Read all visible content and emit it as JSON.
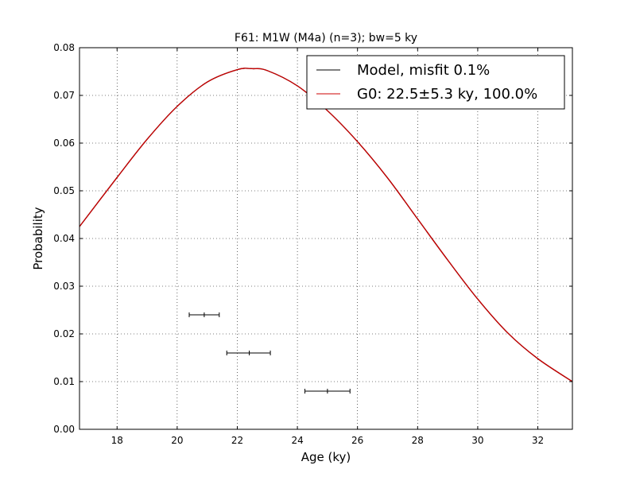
{
  "chart_data": {
    "type": "line",
    "title": "F61: M1W (M4a) (n=3); bw=5 ky",
    "xlabel": "Age (ky)",
    "ylabel": "Probability",
    "xlim": [
      16.75,
      33.15
    ],
    "ylim": [
      0,
      0.08
    ],
    "xticks": [
      18,
      20,
      22,
      24,
      26,
      28,
      30,
      32
    ],
    "yticks": [
      0.0,
      0.01,
      0.02,
      0.03,
      0.04,
      0.05,
      0.06,
      0.07,
      0.08
    ],
    "ytick_labels": [
      "0.00",
      "0.01",
      "0.02",
      "0.03",
      "0.04",
      "0.05",
      "0.06",
      "0.07",
      "0.08"
    ],
    "grid": true,
    "legend_position": "top-right",
    "series": [
      {
        "name": "Model, misfit 0.1%",
        "color": "#000000",
        "kind": "line",
        "x": [
          16.75,
          18,
          19,
          20,
          21,
          22,
          22.5,
          23,
          24,
          25,
          26,
          27,
          28,
          29,
          30,
          31,
          32,
          33.15
        ],
        "y": [
          0.0425,
          0.0528,
          0.0608,
          0.0677,
          0.0728,
          0.0754,
          0.0756,
          0.0752,
          0.072,
          0.0668,
          0.0603,
          0.0527,
          0.0441,
          0.0355,
          0.0273,
          0.0202,
          0.0148,
          0.01
        ]
      },
      {
        "name": "G0: 22.5±5.3 ky, 100.0%",
        "color": "#cc0000",
        "kind": "line",
        "x": [
          16.75,
          18,
          19,
          20,
          21,
          22,
          22.5,
          23,
          24,
          25,
          26,
          27,
          28,
          29,
          30,
          31,
          32,
          33.15
        ],
        "y": [
          0.0425,
          0.0528,
          0.0608,
          0.0677,
          0.0728,
          0.0754,
          0.0756,
          0.0752,
          0.072,
          0.0668,
          0.0603,
          0.0527,
          0.0441,
          0.0355,
          0.0273,
          0.0202,
          0.0148,
          0.01
        ]
      }
    ],
    "samples": [
      {
        "x": 20.9,
        "xmin": 20.4,
        "xmax": 21.4,
        "y": 0.024
      },
      {
        "x": 22.4,
        "xmin": 21.65,
        "xmax": 23.1,
        "y": 0.016
      },
      {
        "x": 25.0,
        "xmin": 24.25,
        "xmax": 25.75,
        "y": 0.008
      }
    ]
  }
}
